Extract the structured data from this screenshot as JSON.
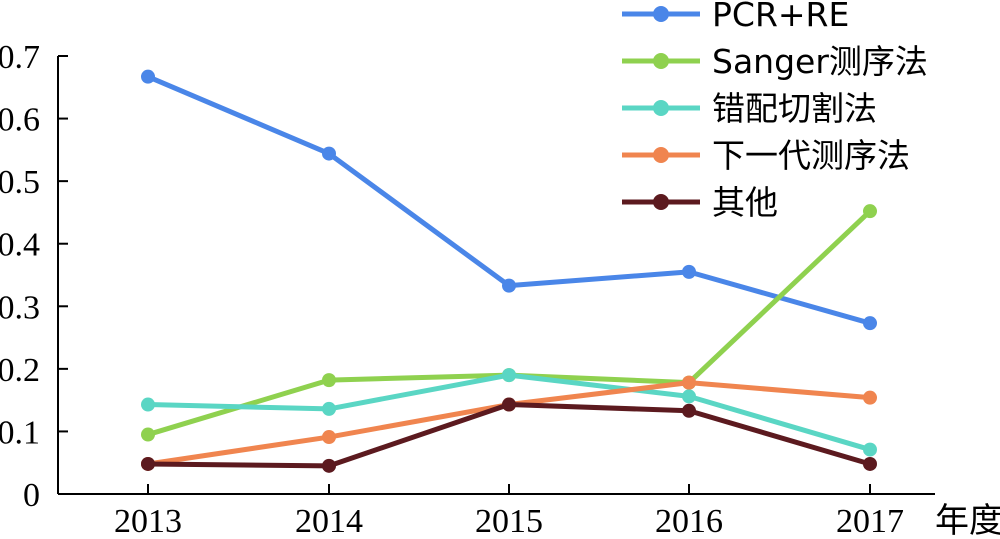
{
  "chart_data": {
    "type": "line",
    "title": "",
    "xlabel": "年度",
    "ylabel": "",
    "categories": [
      "2013",
      "2014",
      "2015",
      "2016",
      "2017"
    ],
    "ylim": [
      0,
      0.7
    ],
    "yticks": [
      "0",
      "0.1",
      "0.2",
      "0.3",
      "0.4",
      "0.5",
      "0.6",
      "0.7"
    ],
    "grid": false,
    "legend_position": "top-right",
    "series": [
      {
        "name": "PCR+RE",
        "color": "#4a86e8",
        "values": [
          0.667,
          0.544,
          0.333,
          0.355,
          0.273
        ]
      },
      {
        "name": "Sanger测序法",
        "color": "#8fd14f",
        "values": [
          0.095,
          0.182,
          0.19,
          0.178,
          0.452
        ]
      },
      {
        "name": "错配切割法",
        "color": "#5ad6c4",
        "values": [
          0.143,
          0.136,
          0.19,
          0.156,
          0.071
        ]
      },
      {
        "name": "下一代测序法",
        "color": "#f0854f",
        "values": [
          0.048,
          0.091,
          0.143,
          0.178,
          0.154
        ]
      },
      {
        "name": "其他",
        "color": "#5c1a1f",
        "values": [
          0.048,
          0.045,
          0.143,
          0.133,
          0.048
        ]
      }
    ]
  }
}
